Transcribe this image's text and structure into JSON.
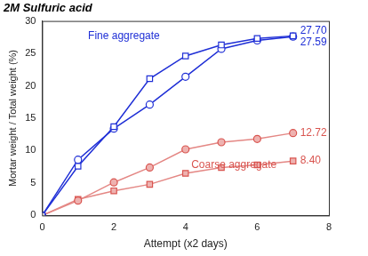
{
  "chart_data": {
    "type": "line",
    "title": "2M Sulfuric acid",
    "xlabel": "Attempt (x2 days)",
    "ylabel": "Mortar weight / Total weight (%)",
    "x": [
      0,
      1,
      2,
      3,
      4,
      5,
      6,
      7
    ],
    "xlim": [
      0,
      8
    ],
    "xticks": [
      0,
      2,
      4,
      6,
      8
    ],
    "ylim": [
      0,
      30
    ],
    "yticks": [
      0,
      5,
      10,
      15,
      20,
      25,
      30
    ],
    "grid": false,
    "data_labels": true,
    "series": [
      {
        "color": "#1f2fd6",
        "marker": "square_open",
        "values": [
          0,
          7.6,
          13.7,
          21.1,
          24.6,
          26.3,
          27.3,
          27.7
        ],
        "value_labels": [
          null,
          null,
          null,
          null,
          null,
          null,
          null,
          "27.70"
        ]
      },
      {
        "color": "#1f2fd6",
        "marker": "circle_open",
        "values": [
          0,
          8.6,
          13.4,
          17.1,
          21.4,
          25.7,
          27.0,
          27.59
        ],
        "value_labels": [
          null,
          null,
          null,
          null,
          null,
          null,
          null,
          "27.59"
        ]
      },
      {
        "color": "#d9544f",
        "marker": "circle",
        "values": [
          0,
          2.3,
          5.1,
          7.4,
          10.2,
          11.3,
          11.8,
          12.72
        ],
        "value_labels": [
          null,
          null,
          null,
          null,
          null,
          null,
          null,
          "12.72"
        ]
      },
      {
        "color": "#d9544f",
        "marker": "square",
        "values": [
          0,
          2.5,
          3.8,
          4.8,
          6.5,
          7.4,
          7.8,
          8.4
        ],
        "value_labels": [
          null,
          null,
          null,
          null,
          null,
          null,
          null,
          "8.40"
        ]
      }
    ],
    "annotations": [
      {
        "text": "Fine aggregate",
        "color": "#1f2fd6"
      },
      {
        "text": "Coarse aggregate",
        "color": "#d9544f"
      }
    ]
  }
}
